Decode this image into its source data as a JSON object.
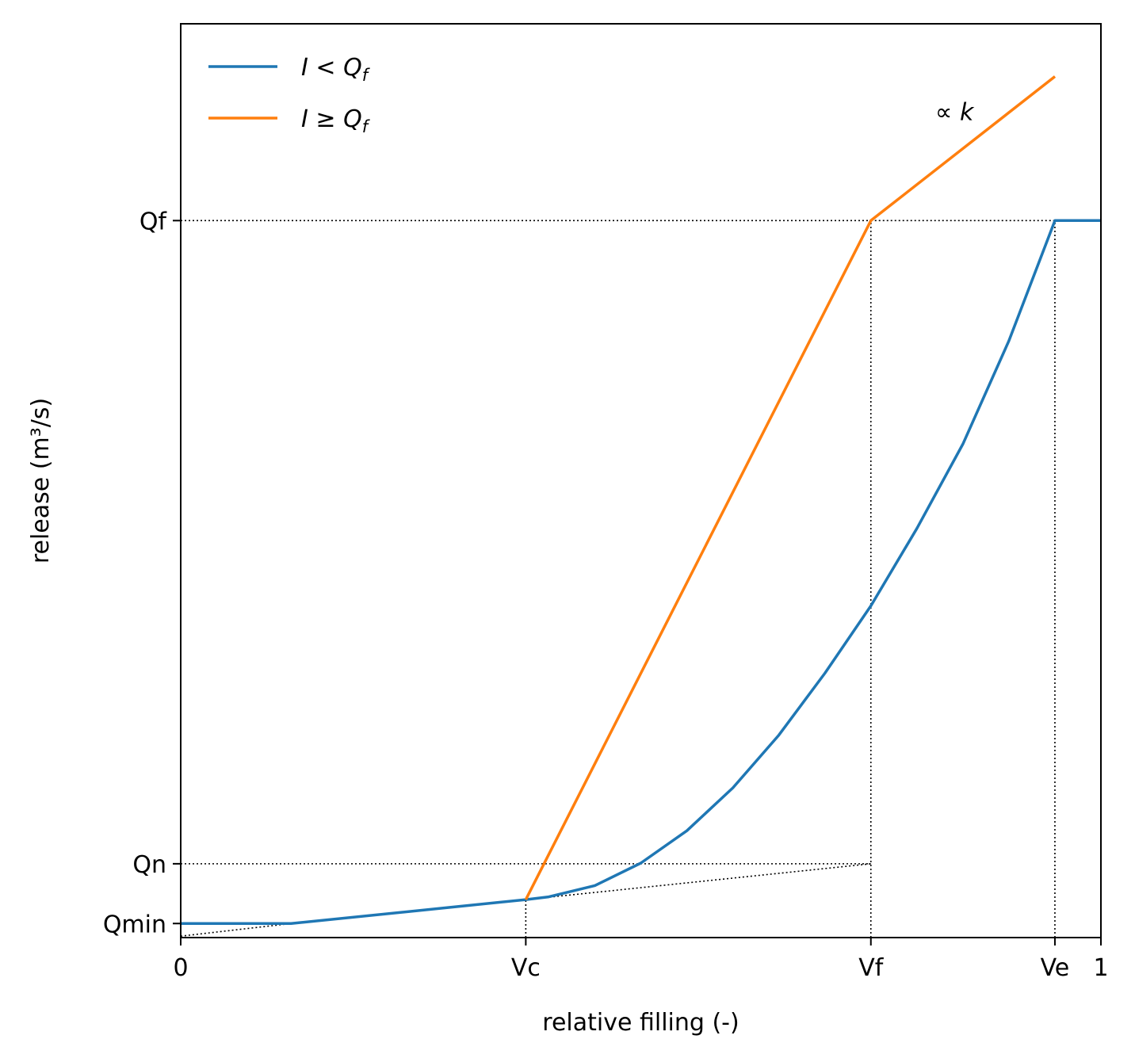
{
  "chart_data": {
    "type": "line",
    "xlabel": "relative filling (-)",
    "ylabel": "release (m³/s)",
    "xlim": [
      0,
      1
    ],
    "ylim": [
      -0.02,
      1.28
    ],
    "grid": false,
    "legend_position": "top-left",
    "x_ticks": [
      {
        "value": 0,
        "label": "0"
      },
      {
        "value": 0.375,
        "label": "Vc"
      },
      {
        "value": 0.75,
        "label": "Vf"
      },
      {
        "value": 0.95,
        "label": "Ve"
      },
      {
        "value": 1,
        "label": "1"
      }
    ],
    "y_ticks": [
      {
        "value": 0,
        "label": "Qmin"
      },
      {
        "value": 0.085,
        "label": "Qn"
      },
      {
        "value": 1,
        "label": "Qf"
      }
    ],
    "series": [
      {
        "name": "I < Q_f",
        "legend_main": "I",
        "legend_op": " < ",
        "legend_var": "Q",
        "legend_sub": "f",
        "color": "#1f77b4",
        "x": [
          0,
          0.12,
          0.375,
          0.4,
          0.45,
          0.5,
          0.55,
          0.6,
          0.65,
          0.7,
          0.75,
          0.8,
          0.85,
          0.9,
          0.95,
          1.0
        ],
        "y": [
          0,
          0,
          0.034,
          0.038,
          0.054,
          0.086,
          0.132,
          0.193,
          0.268,
          0.356,
          0.452,
          0.562,
          0.682,
          0.829,
          1.0,
          1.0
        ]
      },
      {
        "name": "I ≥ Q_f",
        "legend_main": "I",
        "legend_op": " ≥ ",
        "legend_var": "Q",
        "legend_sub": "f",
        "color": "#ff7f0e",
        "x": [
          0.375,
          0.75,
          0.95
        ],
        "y": [
          0.034,
          1.0,
          1.205
        ]
      }
    ],
    "reference_lines": [
      {
        "x": [
          0,
          0.75
        ],
        "y": [
          1.0,
          1.0
        ]
      },
      {
        "x": [
          0.75,
          0.95
        ],
        "y": [
          1.0,
          1.0
        ]
      },
      {
        "x": [
          0,
          0.75
        ],
        "y": [
          0.085,
          0.085
        ]
      },
      {
        "x": [
          0.375,
          0.375
        ],
        "y": [
          -0.02,
          0.034
        ]
      },
      {
        "x": [
          0.75,
          0.75
        ],
        "y": [
          -0.02,
          1.0
        ]
      },
      {
        "x": [
          0.95,
          0.95
        ],
        "y": [
          -0.02,
          1.0
        ]
      },
      {
        "x": [
          0,
          0.12
        ],
        "y": [
          -0.018,
          0
        ]
      },
      {
        "x": [
          0.375,
          0.75
        ],
        "y": [
          0.034,
          0.085
        ]
      }
    ],
    "annotation": {
      "text": "∝ k",
      "x": 0.82,
      "y": 1.143
    }
  }
}
